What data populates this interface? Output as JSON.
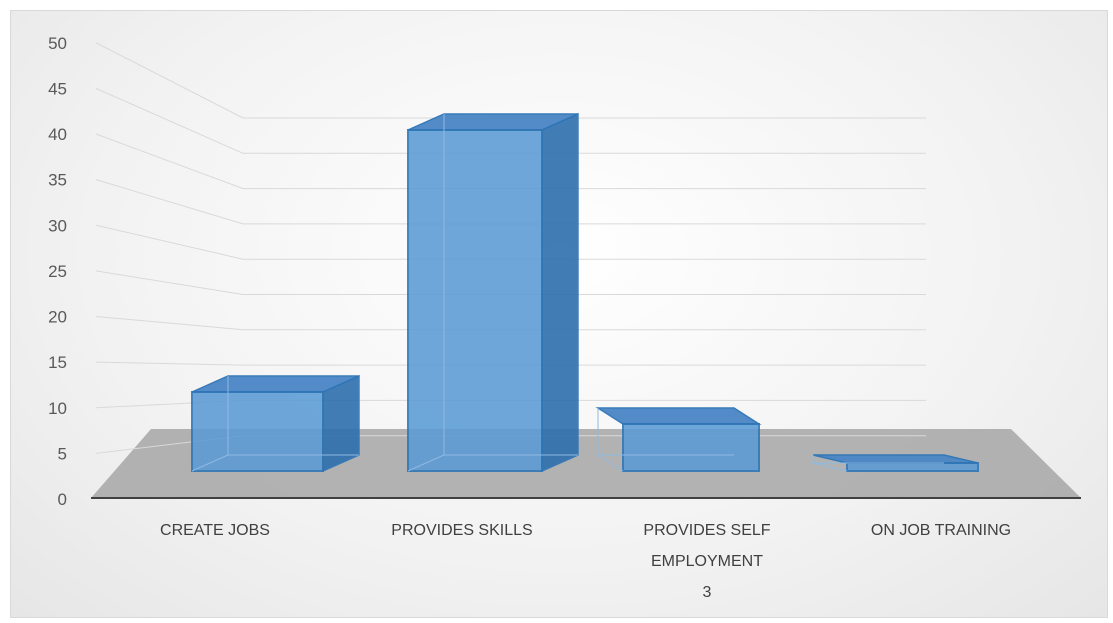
{
  "chart_data": {
    "type": "bar",
    "style": "3d-column",
    "categories": [
      [
        "CREATE JOBS"
      ],
      [
        "PROVIDES SKILLS"
      ],
      [
        "PROVIDES SELF",
        "EMPLOYMENT",
        "3"
      ],
      [
        "ON JOB TRAINING"
      ]
    ],
    "values": [
      9,
      41,
      5,
      1
    ],
    "ylim": [
      0,
      50
    ],
    "yticks": [
      0,
      5,
      10,
      15,
      20,
      25,
      30,
      35,
      40,
      45,
      50
    ],
    "title": "",
    "xlabel": "",
    "ylabel": "",
    "grid": true,
    "legend": "none",
    "colors": {
      "bar_front": "#5b9bd5",
      "bar_side": "#2e6fae",
      "bar_top": "#4a86c5",
      "bar_stroke": "#2e75b6",
      "floor": "#a6a6a6",
      "gridline": "#d9d9d9",
      "axis": "#404040"
    }
  }
}
